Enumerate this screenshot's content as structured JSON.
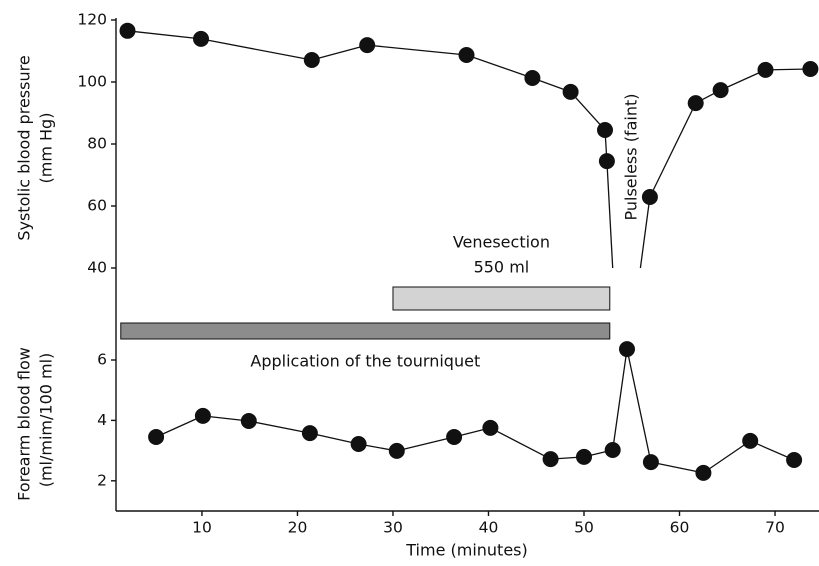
{
  "chart_data": {
    "type": "line",
    "xlabel": "Time (minutes)",
    "xlim": [
      1,
      74.5
    ],
    "xticks": [
      10,
      20,
      30,
      40,
      50,
      60,
      70
    ],
    "grid": false,
    "panels": [
      {
        "ylabel": [
          "Systolic blood pressure",
          "(mm Hg)"
        ],
        "ylim": [
          40,
          120
        ],
        "yticks": [
          40,
          60,
          80,
          100,
          120
        ],
        "annotation": "Pulseless (faint)",
        "segments": [
          {
            "x": [
              2.2,
              9.9,
              21.5,
              27.3,
              37.7,
              44.6,
              48.6,
              52.2,
              52.4,
              53.0
            ],
            "y": [
              116.5,
              113.9,
              107.1,
              111.9,
              108.7,
              101.3,
              96.8,
              84.5,
              74.5,
              40
            ],
            "marked": [
              true,
              true,
              true,
              true,
              true,
              true,
              true,
              true,
              true,
              false
            ]
          },
          {
            "x": [
              55.9,
              56.9,
              61.7,
              64.3,
              69.0,
              73.7
            ],
            "y": [
              40,
              62.9,
              93.2,
              97.4,
              103.9,
              104.2
            ],
            "marked": [
              false,
              true,
              true,
              true,
              true,
              true
            ]
          }
        ]
      },
      {
        "ylabel": [
          "Forearm blood flow",
          "(ml/mim/100 ml)"
        ],
        "ylim": [
          1,
          6.5
        ],
        "yticks": [
          2,
          4,
          6
        ],
        "segments": [
          {
            "x": [
              5.2,
              10.1,
              14.9,
              21.3,
              26.4,
              30.4,
              36.4,
              40.2,
              46.5,
              50.0,
              53.0,
              54.5,
              57.0,
              62.5,
              67.4,
              72.0
            ],
            "y": [
              3.45,
              4.15,
              3.98,
              3.58,
              3.22,
              2.99,
              3.45,
              3.75,
              2.72,
              2.79,
              3.02,
              6.36,
              2.62,
              2.26,
              3.32,
              2.69
            ],
            "marked": [
              true,
              true,
              true,
              true,
              true,
              true,
              true,
              true,
              true,
              true,
              true,
              true,
              true,
              true,
              true,
              true
            ]
          }
        ]
      }
    ],
    "intervals": [
      {
        "label": [
          "Venesection",
          "550 ml"
        ],
        "start": 30,
        "end": 52.7,
        "color": "#d3d3d3"
      },
      {
        "label": [
          "Application of the tourniquet"
        ],
        "start": 1.5,
        "end": 52.7,
        "color": "#8c8c8c"
      }
    ],
    "colors": {
      "line": "#111111",
      "marker": "#111111"
    }
  }
}
